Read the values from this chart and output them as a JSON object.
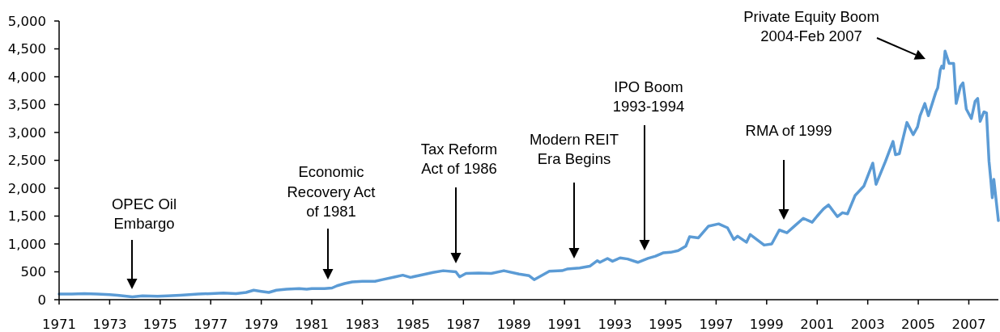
{
  "chart_data": {
    "type": "line",
    "x": [
      1971.0,
      1971.5,
      1972.0,
      1972.5,
      1973.0,
      1973.3,
      1973.9,
      1974.3,
      1974.9,
      1975.3,
      1975.8,
      1976.5,
      1977.0,
      1977.5,
      1978.0,
      1978.4,
      1978.7,
      1979.0,
      1979.3,
      1979.6,
      1980.0,
      1980.5,
      1980.8,
      1981.0,
      1981.5,
      1981.8,
      1982.0,
      1982.3,
      1982.6,
      1983.0,
      1983.5,
      1983.8,
      1984.3,
      1984.6,
      1984.9,
      1985.4,
      1985.8,
      1986.2,
      1986.7,
      1986.85,
      1987.1,
      1987.6,
      1988.1,
      1988.6,
      1989.2,
      1989.6,
      1989.8,
      1990.4,
      1990.9,
      1991.1,
      1991.6,
      1992.0,
      1992.3,
      1992.4,
      1992.7,
      1992.9,
      1993.2,
      1993.5,
      1993.9,
      1994.3,
      1994.6,
      1994.9,
      1995.2,
      1995.5,
      1995.8,
      1995.95,
      1996.3,
      1996.7,
      1997.1,
      1997.45,
      1997.7,
      1997.85,
      1998.2,
      1998.35,
      1998.9,
      1999.2,
      1999.5,
      1999.8,
      2000.1,
      2000.45,
      2000.8,
      2001.0,
      2001.25,
      2001.45,
      2001.8,
      2002.0,
      2002.2,
      2002.5,
      2002.85,
      2003.2,
      2003.33,
      2003.5,
      2003.7,
      2004.0,
      2004.1,
      2004.25,
      2004.55,
      2004.8,
      2004.97,
      2005.07,
      2005.26,
      2005.4,
      2005.7,
      2005.77,
      2005.87,
      2005.93,
      2006.0,
      2006.06,
      2006.22,
      2006.4,
      2006.5,
      2006.67,
      2006.77,
      2006.9,
      2007.1,
      2007.25,
      2007.35,
      2007.45,
      2007.6,
      2007.7,
      2007.8,
      2007.87,
      2007.93,
      2007.99,
      2008.17
    ],
    "series": [
      {
        "color": "#5b9bd5",
        "values": [
          100,
          100,
          110,
          100,
          90,
          80,
          50,
          70,
          60,
          70,
          80,
          100,
          110,
          120,
          110,
          130,
          170,
          150,
          130,
          170,
          190,
          200,
          190,
          200,
          200,
          210,
          250,
          290,
          320,
          330,
          330,
          360,
          410,
          440,
          400,
          450,
          490,
          520,
          500,
          410,
          470,
          480,
          470,
          520,
          460,
          430,
          360,
          510,
          520,
          550,
          570,
          600,
          700,
          670,
          740,
          690,
          750,
          730,
          670,
          740,
          780,
          840,
          850,
          880,
          960,
          1130,
          1110,
          1320,
          1360,
          1290,
          1080,
          1140,
          1030,
          1170,
          980,
          1000,
          1250,
          1200,
          1320,
          1460,
          1390,
          1500,
          1630,
          1700,
          1490,
          1560,
          1540,
          1870,
          2040,
          2450,
          2070,
          2260,
          2480,
          2840,
          2600,
          2620,
          3180,
          2960,
          3100,
          3300,
          3520,
          3300,
          3730,
          3800,
          4120,
          4190,
          4150,
          4460,
          4240,
          4240,
          3520,
          3830,
          3890,
          3420,
          3250,
          3560,
          3610,
          3200,
          3370,
          3350,
          2480,
          2150,
          1830,
          2160,
          1420
        ]
      }
    ],
    "xlim": [
      1971,
      2008.17
    ],
    "ylim": [
      0,
      5000
    ],
    "xticks": [
      1971,
      1973,
      1975,
      1977,
      1979,
      1981,
      1983,
      1985,
      1987,
      1989,
      1991,
      1993,
      1995,
      1997,
      1999,
      2001,
      2003,
      2005,
      2007
    ],
    "yticks": [
      0,
      500,
      {
        "value": 1000,
        "label": "1,000"
      },
      {
        "value": 1500,
        "label": "1,500"
      },
      {
        "value": 2000,
        "label": "2,000"
      },
      {
        "value": 2500,
        "label": "2,500"
      },
      {
        "value": 3000,
        "label": "3,000"
      },
      {
        "value": 3500,
        "label": "3,500"
      },
      {
        "value": 4000,
        "label": "4,000"
      },
      {
        "value": 4500,
        "label": "4,500"
      },
      {
        "value": 5000,
        "label": "5,000"
      }
    ],
    "annotations": [
      "OPEC Oil\nEmbargo",
      "Economic\nRecovery Act\nof 1981",
      "Tax Reform\nAct of 1986",
      "Modern REIT\nEra Begins",
      "IPO Boom\n1993-1994",
      "RMA of 1999",
      "Private Equity Boom\n2004-Feb 2007"
    ]
  }
}
